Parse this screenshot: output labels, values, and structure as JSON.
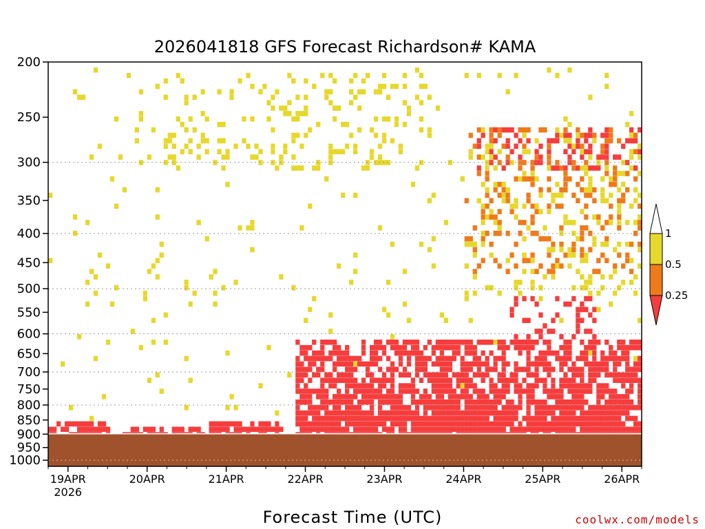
{
  "chart_data": {
    "type": "heatmap",
    "title": "2026041818 GFS Forecast Richardson# KAMA",
    "xlabel": "Forecast Time (UTC)",
    "ylabel": "",
    "credit": "coolwx.com/models",
    "y_scale": "log",
    "y_inverted": true,
    "ylim": [
      1025,
      200
    ],
    "y_ticks": [
      200,
      250,
      300,
      350,
      400,
      450,
      500,
      550,
      600,
      650,
      700,
      750,
      800,
      850,
      900,
      950,
      1000
    ],
    "y_gridlines": [
      300,
      400,
      500,
      600,
      700,
      800,
      900,
      1000
    ],
    "x_range_hours": [
      0,
      180
    ],
    "x_ticks": [
      {
        "label": "19APR",
        "sublabel": "2026",
        "hour": 6
      },
      {
        "label": "20APR",
        "hour": 30
      },
      {
        "label": "21APR",
        "hour": 54
      },
      {
        "label": "22APR",
        "hour": 78
      },
      {
        "label": "23APR",
        "hour": 102
      },
      {
        "label": "24APR",
        "hour": 126
      },
      {
        "label": "25APR",
        "hour": 150
      },
      {
        "label": "26APR",
        "hour": 174
      }
    ],
    "colorbar": {
      "levels": [
        "0.25",
        "0.5",
        "1"
      ],
      "bins": [
        {
          "range": "< 0.25",
          "color": "#f63d3d"
        },
        {
          "range": "0.25 - 0.5",
          "color": "#ef7a1a"
        },
        {
          "range": "0.5 - 1",
          "color": "#e6d82c"
        },
        {
          "range": "> 1",
          "color": "#ffffff"
        }
      ]
    },
    "ground": {
      "color": "#a0522d",
      "surface_pressure_mb": 900
    },
    "regions": [
      {
        "bin": "lt025",
        "t": [
          0,
          18
        ],
        "p": [
          820,
          890
        ],
        "note": "boundary layer, day 1"
      },
      {
        "bin": "lt025",
        "t": [
          22,
          52
        ],
        "p": [
          845,
          895
        ]
      },
      {
        "bin": "lt025",
        "t": [
          48,
          70
        ],
        "p": [
          820,
          895
        ]
      },
      {
        "bin": "lt025",
        "t": [
          74,
          120
        ],
        "p": [
          600,
          890
        ],
        "note": "deep low Ri layer 22-23 APR"
      },
      {
        "bin": "lt025",
        "t": [
          120,
          180
        ],
        "p": [
          600,
          890
        ],
        "note": "deep low Ri layer 24-26 APR"
      },
      {
        "bin": "lt025",
        "t": [
          140,
          165
        ],
        "p": [
          500,
          600
        ]
      },
      {
        "bin": "lt025",
        "t": [
          130,
          180
        ],
        "p": [
          250,
          300
        ]
      },
      {
        "bin": "025_05",
        "t": [
          126,
          180
        ],
        "p": [
          250,
          460
        ]
      },
      {
        "bin": "05_1",
        "t": [
          35,
          115
        ],
        "p": [
          200,
          300
        ],
        "note": "upper level patches"
      },
      {
        "bin": "05_1",
        "t": [
          126,
          180
        ],
        "p": [
          250,
          500
        ]
      }
    ]
  }
}
